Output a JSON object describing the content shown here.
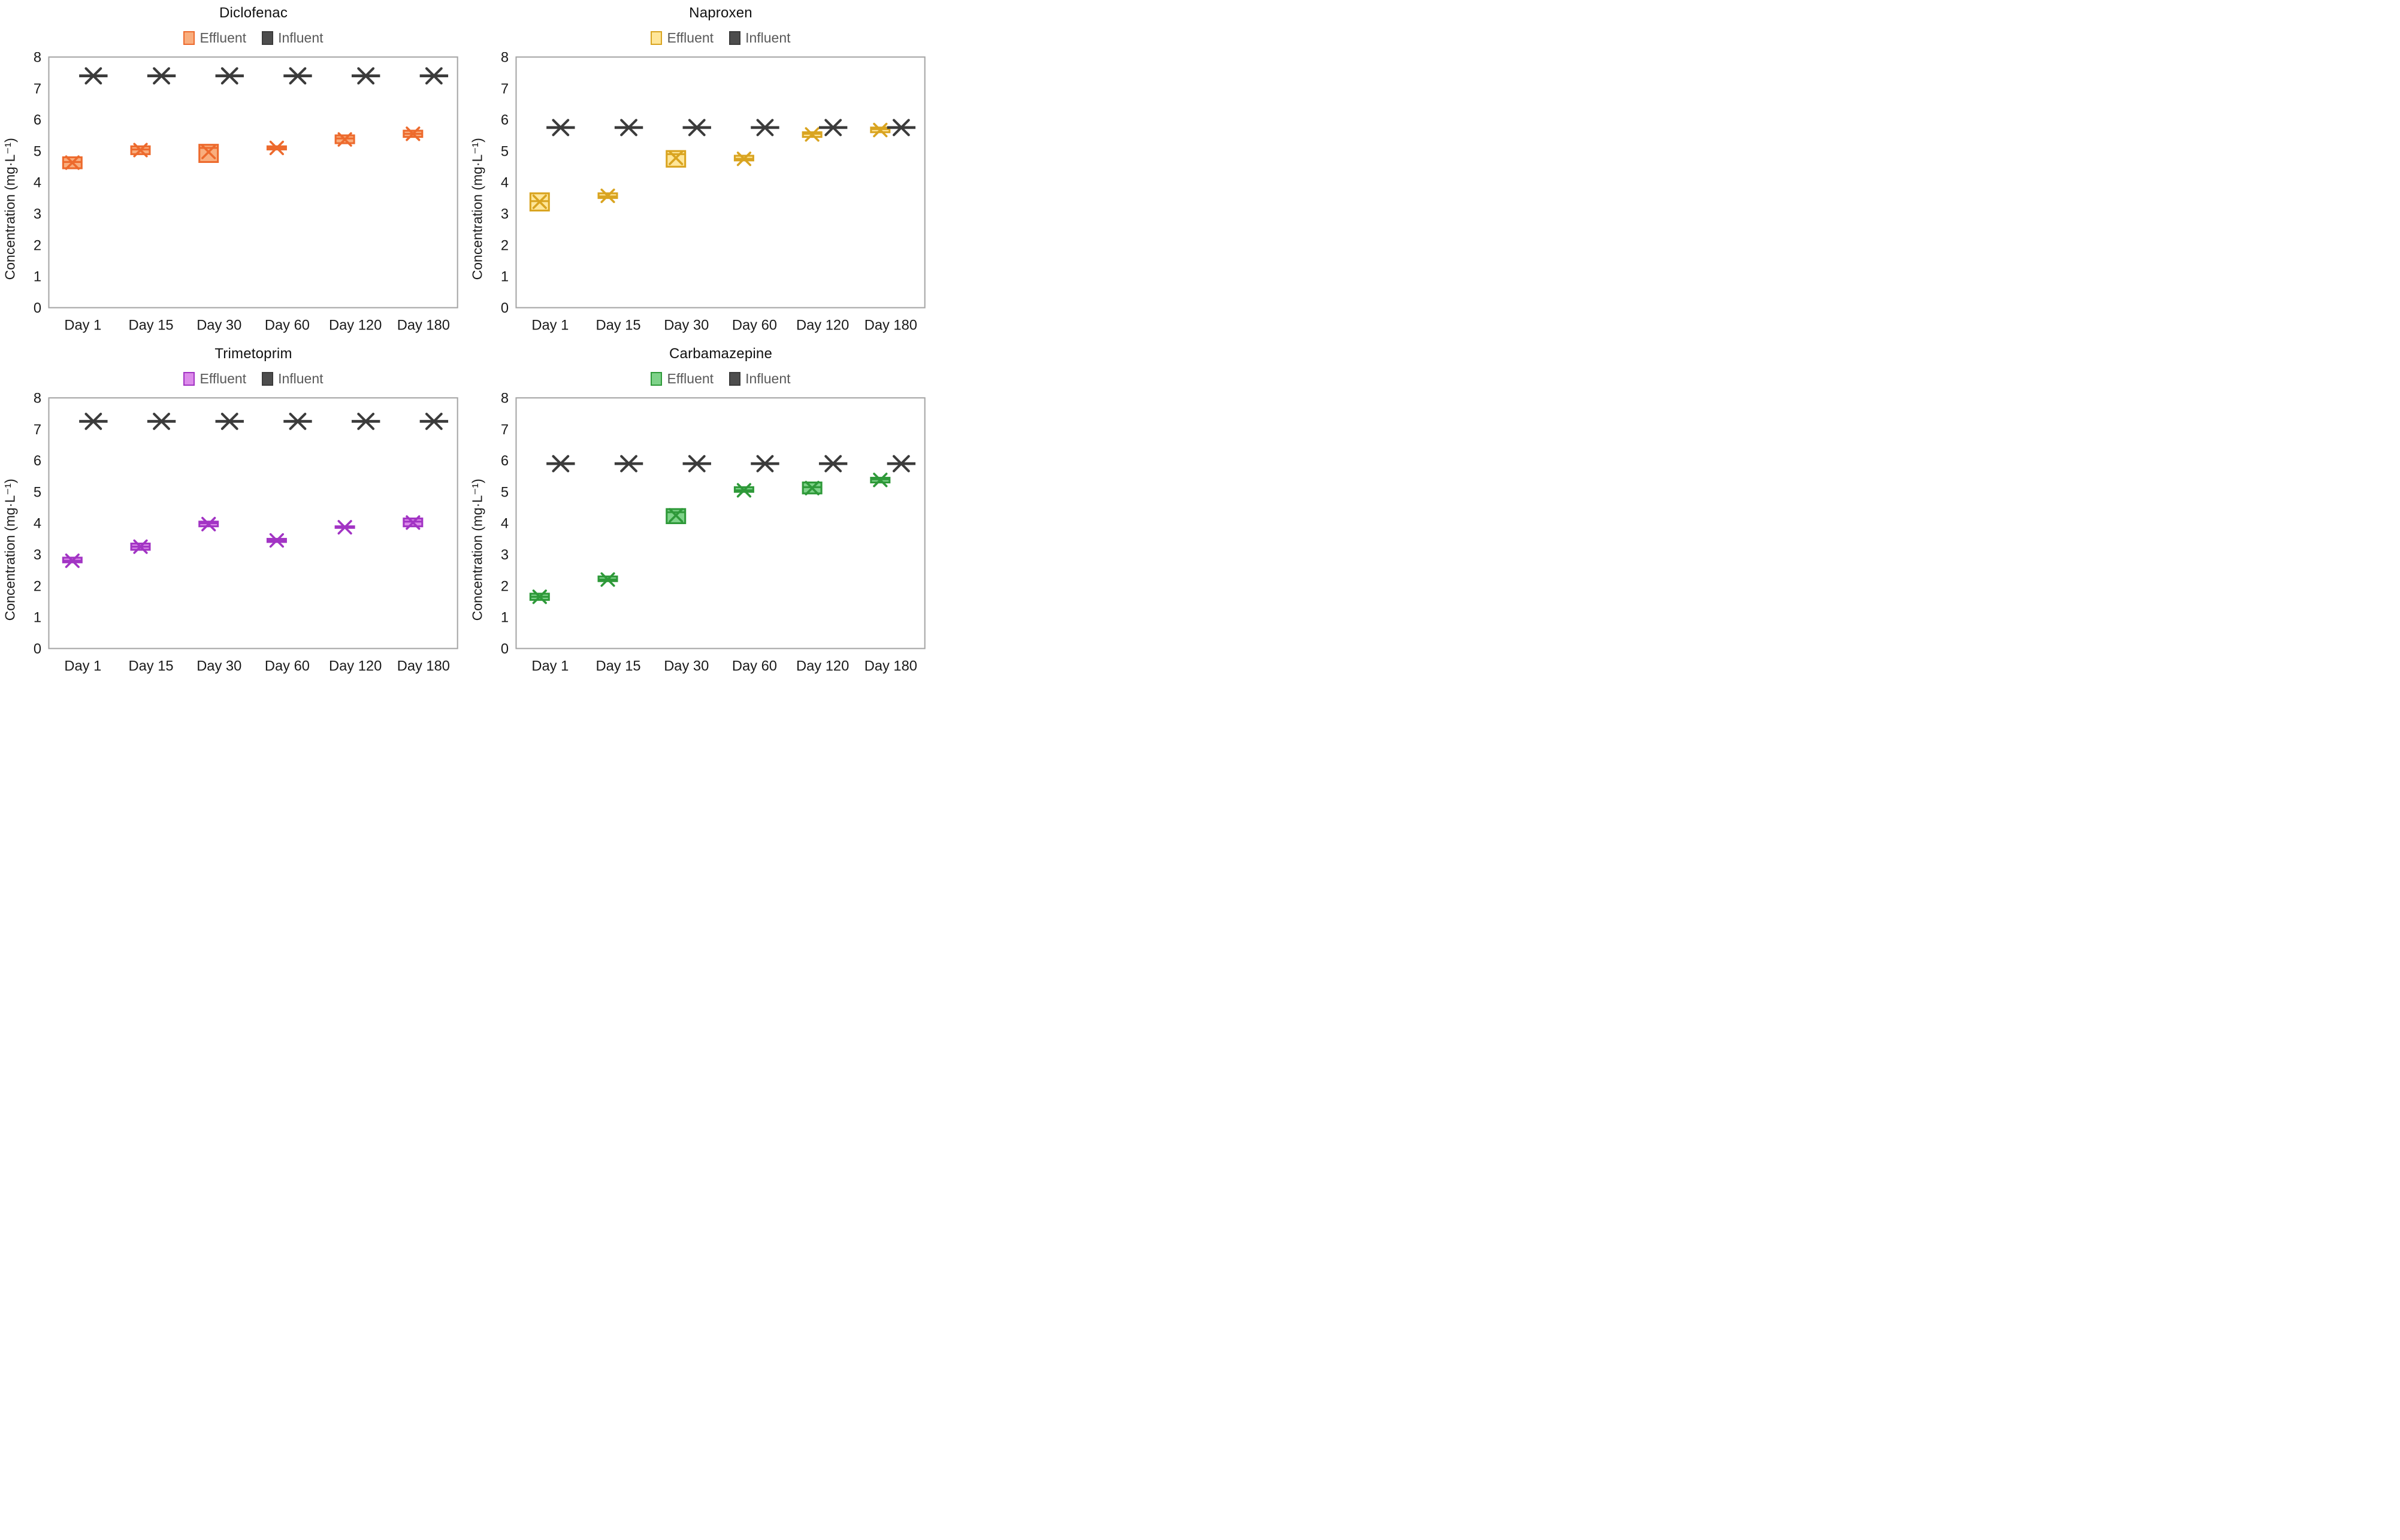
{
  "page": {
    "background": "#ffffff",
    "plot_border_color": "#a6a6a6",
    "axis_text_color": "#1a1a1a",
    "legend_text_color": "#595959",
    "influent_color": "#3b3b3b"
  },
  "axes": {
    "y_label": "Concentration (mg·L⁻¹)",
    "y_min": 0,
    "y_max": 8,
    "y_ticks": [
      "0",
      "1",
      "2",
      "3",
      "4",
      "5",
      "6",
      "7",
      "8"
    ],
    "categories": [
      "Day 1",
      "Day 15",
      "Day 30",
      "Day 60",
      "Day 120",
      "Day 180"
    ]
  },
  "legend": {
    "effluent_label": "Effluent",
    "influent_label": "Influent"
  },
  "chart_data": [
    {
      "type": "box",
      "title": "Diclofenac",
      "ylabel": "Concentration (mg·L⁻¹)",
      "ylim": [
        0,
        8
      ],
      "grid": false,
      "legend_position": "top",
      "categories": [
        "Day 1",
        "Day 15",
        "Day 30",
        "Day 60",
        "Day 120",
        "Day 180"
      ],
      "series": [
        {
          "name": "Effluent",
          "style": "box",
          "fill": "#f9ae7e",
          "stroke": "#ed6a2d",
          "boxes": [
            {
              "q1": 4.45,
              "median": 4.65,
              "q3": 4.8,
              "mean": 4.63
            },
            {
              "q1": 4.9,
              "median": 5.05,
              "q3": 5.15,
              "mean": 5.03
            },
            {
              "q1": 4.65,
              "median": 5.1,
              "q3": 5.2,
              "mean": 4.97
            },
            {
              "q1": 5.05,
              "median": 5.1,
              "q3": 5.15,
              "mean": 5.1
            },
            {
              "q1": 5.25,
              "median": 5.4,
              "q3": 5.5,
              "mean": 5.37
            },
            {
              "q1": 5.45,
              "median": 5.55,
              "q3": 5.65,
              "mean": 5.55
            }
          ]
        },
        {
          "name": "Influent",
          "style": "flat-line-x",
          "stroke": "#3b3b3b",
          "values": [
            7.4,
            7.4,
            7.4,
            7.4,
            7.4,
            7.4
          ]
        }
      ]
    },
    {
      "type": "box",
      "title": "Naproxen",
      "ylabel": "Concentration (mg·L⁻¹)",
      "ylim": [
        0,
        8
      ],
      "grid": false,
      "legend_position": "top",
      "categories": [
        "Day 1",
        "Day 15",
        "Day 30",
        "Day 60",
        "Day 120",
        "Day 180"
      ],
      "series": [
        {
          "name": "Effluent",
          "style": "box",
          "fill": "#ffe699",
          "stroke": "#d9a420",
          "boxes": [
            {
              "q1": 3.1,
              "median": 3.4,
              "q3": 3.65,
              "mean": 3.38
            },
            {
              "q1": 3.5,
              "median": 3.55,
              "q3": 3.65,
              "mean": 3.57
            },
            {
              "q1": 4.5,
              "median": 4.9,
              "q3": 5.0,
              "mean": 4.78
            },
            {
              "q1": 4.7,
              "median": 4.75,
              "q3": 4.85,
              "mean": 4.75
            },
            {
              "q1": 5.45,
              "median": 5.55,
              "q3": 5.6,
              "mean": 5.53
            },
            {
              "q1": 5.6,
              "median": 5.7,
              "q3": 5.75,
              "mean": 5.67
            }
          ]
        },
        {
          "name": "Influent",
          "style": "flat-line-x",
          "stroke": "#3b3b3b",
          "values": [
            5.75,
            5.75,
            5.75,
            5.75,
            5.75,
            5.75
          ]
        }
      ]
    },
    {
      "type": "box",
      "title": "Trimetoprim",
      "ylabel": "Concentration (mg·L⁻¹)",
      "ylim": [
        0,
        8
      ],
      "grid": false,
      "legend_position": "top",
      "categories": [
        "Day 1",
        "Day 15",
        "Day 30",
        "Day 60",
        "Day 120",
        "Day 180"
      ],
      "series": [
        {
          "name": "Effluent",
          "style": "box",
          "fill": "#dc8bea",
          "stroke": "#a234c4",
          "boxes": [
            {
              "q1": 2.75,
              "median": 2.8,
              "q3": 2.9,
              "mean": 2.8
            },
            {
              "q1": 3.15,
              "median": 3.25,
              "q3": 3.35,
              "mean": 3.25
            },
            {
              "q1": 3.9,
              "median": 4.0,
              "q3": 4.05,
              "mean": 3.97
            },
            {
              "q1": 3.4,
              "median": 3.45,
              "q3": 3.5,
              "mean": 3.45
            },
            {
              "q1": 3.85,
              "median": 3.87,
              "q3": 3.9,
              "mean": 3.87
            },
            {
              "q1": 3.9,
              "median": 4.05,
              "q3": 4.15,
              "mean": 4.02
            }
          ]
        },
        {
          "name": "Influent",
          "style": "flat-line-x",
          "stroke": "#3b3b3b",
          "values": [
            7.25,
            7.25,
            7.25,
            7.25,
            7.25,
            7.25
          ]
        }
      ]
    },
    {
      "type": "box",
      "title": "Carbamazepine",
      "ylabel": "Concentration (mg·L⁻¹)",
      "ylim": [
        0,
        8
      ],
      "grid": false,
      "legend_position": "top",
      "categories": [
        "Day 1",
        "Day 15",
        "Day 30",
        "Day 60",
        "Day 120",
        "Day 180"
      ],
      "series": [
        {
          "name": "Effluent",
          "style": "box",
          "fill": "#7ed289",
          "stroke": "#2e9939",
          "boxes": [
            {
              "q1": 1.55,
              "median": 1.65,
              "q3": 1.75,
              "mean": 1.65
            },
            {
              "q1": 2.15,
              "median": 2.2,
              "q3": 2.3,
              "mean": 2.2
            },
            {
              "q1": 4.0,
              "median": 4.35,
              "q3": 4.45,
              "mean": 4.25
            },
            {
              "q1": 5.0,
              "median": 5.05,
              "q3": 5.15,
              "mean": 5.05
            },
            {
              "q1": 4.95,
              "median": 5.15,
              "q3": 5.3,
              "mean": 5.12
            },
            {
              "q1": 5.3,
              "median": 5.4,
              "q3": 5.45,
              "mean": 5.38
            }
          ]
        },
        {
          "name": "Influent",
          "style": "flat-line-x",
          "stroke": "#3b3b3b",
          "values": [
            5.9,
            5.9,
            5.9,
            5.9,
            5.9,
            5.9
          ]
        }
      ]
    }
  ]
}
